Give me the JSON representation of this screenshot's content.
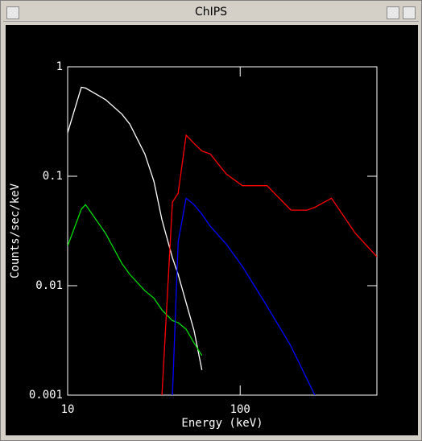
{
  "window_title": "ChIPS",
  "chart_data": {
    "type": "line",
    "xlabel": "Energy (keV)",
    "ylabel": "Counts/sec/keV",
    "xscale": "log",
    "yscale": "log",
    "xlim": [
      10,
      620
    ],
    "ylim": [
      0.001,
      1
    ],
    "xticks": [
      10,
      100
    ],
    "yticks": [
      0.001,
      0.01,
      0.1,
      1
    ],
    "x": [
      10,
      12,
      12.7,
      16.6,
      20.6,
      22.9,
      28,
      31.6,
      35.2,
      40.5,
      43.7,
      48.6,
      54,
      60,
      67,
      83,
      103,
      143,
      197,
      244,
      271,
      338,
      466,
      620
    ],
    "series": [
      {
        "color": "#ffffff",
        "values": [
          0.25,
          0.65,
          0.64,
          0.5,
          0.37,
          0.3,
          0.16,
          0.09,
          0.04,
          0.018,
          0.0127,
          0.007,
          0.0039,
          0.0017,
          null,
          null,
          null,
          null,
          null,
          null,
          null,
          null,
          null,
          null
        ]
      },
      {
        "color": "#00dd00",
        "values": [
          0.023,
          0.05,
          0.055,
          0.03,
          0.016,
          0.0127,
          0.009,
          0.0077,
          0.006,
          0.0048,
          0.0046,
          0.004,
          0.003,
          0.0023,
          null,
          null,
          null,
          null,
          null,
          null,
          null,
          null,
          null,
          null
        ]
      },
      {
        "color": "#ff0000",
        "values": [
          null,
          null,
          null,
          null,
          null,
          null,
          null,
          null,
          0.001,
          0.058,
          0.07,
          0.237,
          0.2,
          0.17,
          0.16,
          0.105,
          0.082,
          0.082,
          0.049,
          0.049,
          0.052,
          0.063,
          0.03,
          0.0184
        ]
      },
      {
        "color": "#0000ff",
        "values": [
          null,
          null,
          null,
          null,
          null,
          null,
          null,
          null,
          null,
          0.001,
          0.025,
          0.063,
          0.055,
          0.045,
          0.035,
          0.024,
          0.015,
          0.0065,
          0.0028,
          0.0014,
          0.001,
          null,
          null,
          null
        ]
      }
    ]
  }
}
